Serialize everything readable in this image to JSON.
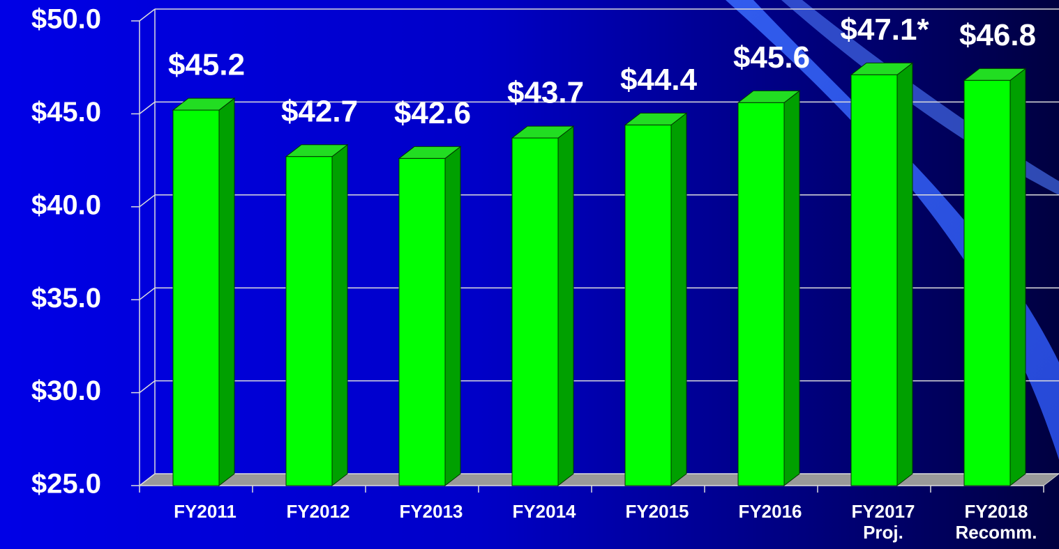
{
  "chart_data": {
    "type": "bar3d",
    "categories": [
      "FY2011",
      "FY2012",
      "FY2013",
      "FY2014",
      "FY2015",
      "FY2016",
      "FY2017\nProj.",
      "FY2018\nRecomm."
    ],
    "values": [
      45.2,
      42.7,
      42.6,
      43.7,
      44.4,
      45.6,
      47.1,
      46.8
    ],
    "value_labels": [
      "$45.2",
      "$42.7",
      "$42.6",
      "$43.7",
      "$44.4",
      "$45.6",
      "$47.1*",
      "$46.8"
    ],
    "color": "#00ff00",
    "ylim": [
      25,
      50
    ],
    "yticks": [
      {
        "value": 25,
        "label": "$25.0"
      },
      {
        "value": 30,
        "label": "$30.0"
      },
      {
        "value": 35,
        "label": "$35.0"
      },
      {
        "value": 40,
        "label": "$40.0"
      },
      {
        "value": 45,
        "label": "$45.0"
      },
      {
        "value": 50,
        "label": "$50.0"
      }
    ],
    "grid": true
  }
}
